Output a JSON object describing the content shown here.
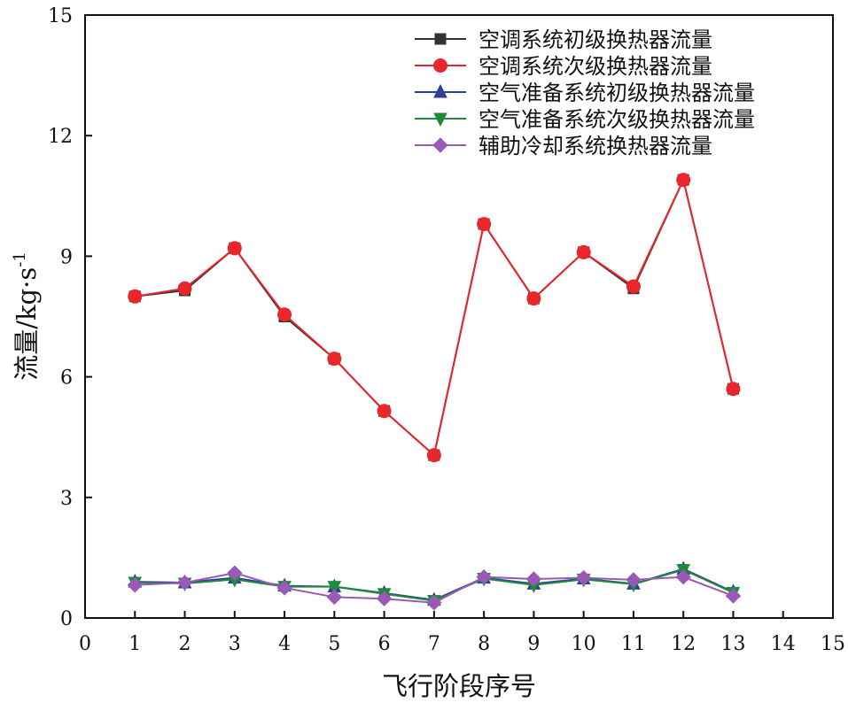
{
  "chart_data": {
    "type": "line",
    "xlabel": "飞行阶段序号",
    "ylabel_main": "流量/kg·s",
    "ylabel_sup": "-1",
    "xlim": [
      0,
      15
    ],
    "ylim": [
      0,
      15
    ],
    "xticks": [
      0,
      1,
      2,
      3,
      4,
      5,
      6,
      7,
      8,
      9,
      10,
      11,
      12,
      13,
      14,
      15
    ],
    "yticks": [
      0,
      3,
      6,
      9,
      12,
      15
    ],
    "grid": false,
    "legend_position": "top-right",
    "x": [
      1,
      2,
      3,
      4,
      5,
      6,
      7,
      8,
      9,
      10,
      11,
      12,
      13
    ],
    "series": [
      {
        "name": "空调系统初级换热器流量",
        "color": "#333333",
        "marker": "square",
        "values": [
          8.0,
          8.15,
          9.2,
          7.5,
          6.45,
          5.15,
          4.05,
          9.8,
          7.95,
          9.1,
          8.2,
          10.9,
          5.7
        ]
      },
      {
        "name": "空调系统次级换热器流量",
        "color": "#e8262b",
        "marker": "circle",
        "values": [
          8.0,
          8.2,
          9.2,
          7.55,
          6.45,
          5.15,
          4.05,
          9.8,
          7.95,
          9.1,
          8.25,
          10.9,
          5.7
        ]
      },
      {
        "name": "空气准备系统初级换热器流量",
        "color": "#2e3f9e",
        "marker": "triangle-up",
        "values": [
          0.9,
          0.88,
          1.0,
          0.8,
          0.78,
          0.62,
          0.45,
          1.0,
          0.85,
          0.98,
          0.85,
          1.22,
          0.65
        ]
      },
      {
        "name": "空气准备系统次级换热器流量",
        "color": "#1f8a3a",
        "marker": "triangle-down",
        "values": [
          0.88,
          0.86,
          0.96,
          0.78,
          0.78,
          0.6,
          0.43,
          0.98,
          0.82,
          0.96,
          0.84,
          1.2,
          0.63
        ]
      },
      {
        "name": "辅助冷却系统换热器流量",
        "color": "#9b59b6",
        "marker": "diamond",
        "values": [
          0.82,
          0.88,
          1.12,
          0.75,
          0.52,
          0.48,
          0.38,
          1.02,
          0.97,
          1.0,
          0.95,
          1.02,
          0.55
        ]
      }
    ]
  }
}
